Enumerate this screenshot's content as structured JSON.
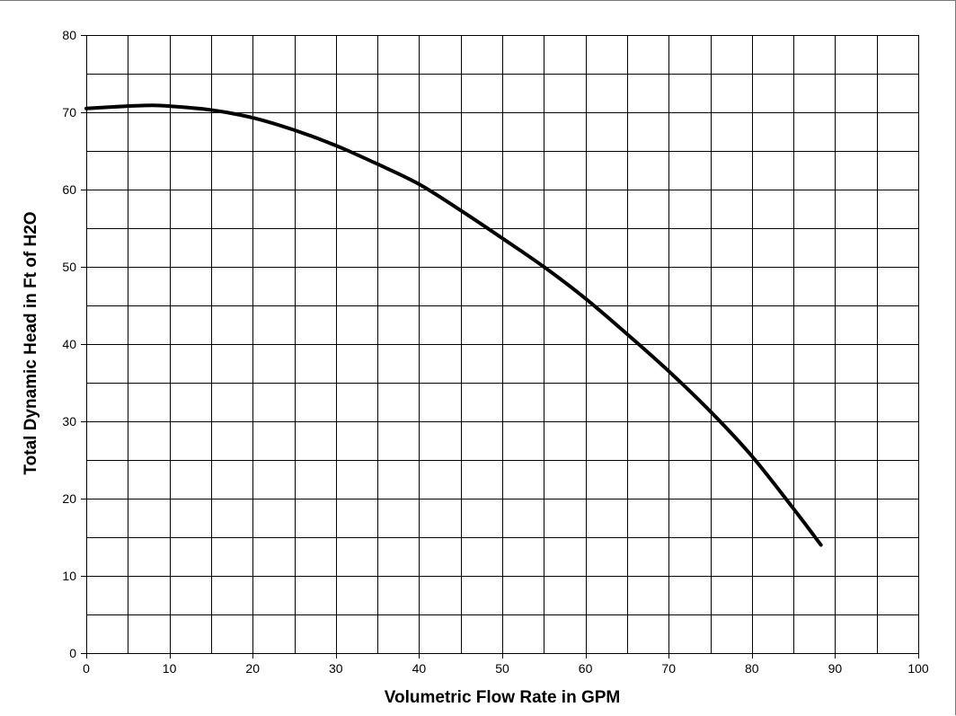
{
  "chart_data": {
    "type": "line",
    "title": "",
    "xlabel": "Volumetric Flow Rate in GPM",
    "ylabel": "Total Dynamic Head in Ft of H2O",
    "xlim": [
      0,
      100
    ],
    "ylim": [
      0,
      80
    ],
    "x_ticks": [
      "0",
      "10",
      "20",
      "30",
      "40",
      "50",
      "60",
      "70",
      "80",
      "90",
      "100"
    ],
    "y_ticks": [
      "0",
      "10",
      "20",
      "30",
      "40",
      "50",
      "60",
      "70",
      "80"
    ],
    "x_grid_step": 5,
    "y_grid_step": 5,
    "grid": true,
    "legend": "none",
    "series": [
      {
        "color": "#000000",
        "points": [
          [
            0,
            70.5
          ],
          [
            5,
            70.8
          ],
          [
            8,
            70.9
          ],
          [
            10,
            70.8
          ],
          [
            15,
            70.3
          ],
          [
            20,
            69.3
          ],
          [
            25,
            67.7
          ],
          [
            30,
            65.7
          ],
          [
            35,
            63.3
          ],
          [
            40,
            60.7
          ],
          [
            45,
            57.3
          ],
          [
            50,
            53.7
          ],
          [
            55,
            50.0
          ],
          [
            60,
            45.9
          ],
          [
            65,
            41.3
          ],
          [
            70,
            36.5
          ],
          [
            75,
            31.3
          ],
          [
            80,
            25.5
          ],
          [
            85,
            18.7
          ],
          [
            88.3,
            14.0
          ]
        ]
      }
    ]
  }
}
